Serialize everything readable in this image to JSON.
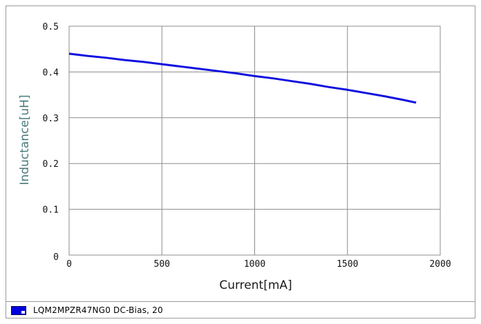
{
  "chart_data": {
    "type": "line",
    "xlabel": "Current[mA]",
    "ylabel": "Inductance[uH]",
    "xlim": [
      0,
      2000
    ],
    "ylim": [
      0,
      0.5
    ],
    "x_ticks": [
      "0",
      "500",
      "1000",
      "1500",
      "2000"
    ],
    "y_ticks": [
      "0",
      "0.1",
      "0.2",
      "0.3",
      "0.4",
      "0.5"
    ],
    "grid": true,
    "legend_position": "bottom",
    "series": [
      {
        "name": "LQM2MPZR47NG0  DC-Bias, 20",
        "color": "#1010e0",
        "x": [
          0,
          100,
          200,
          300,
          400,
          500,
          600,
          700,
          800,
          900,
          1000,
          1100,
          1200,
          1300,
          1400,
          1500,
          1600,
          1700,
          1800,
          1870
        ],
        "y": [
          0.44,
          0.435,
          0.431,
          0.426,
          0.422,
          0.417,
          0.412,
          0.407,
          0.402,
          0.397,
          0.391,
          0.386,
          0.38,
          0.374,
          0.367,
          0.361,
          0.354,
          0.347,
          0.339,
          0.333
        ]
      }
    ]
  }
}
